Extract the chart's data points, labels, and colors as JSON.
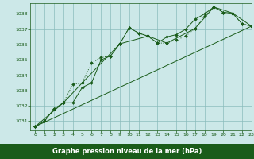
{
  "title": "Graphe pression niveau de la mer (hPa)",
  "background_color": "#cce8e8",
  "grid_color": "#8bbcbc",
  "line_color": "#1a5c1a",
  "bottom_color": "#1a5c1a",
  "xlim": [
    -0.5,
    23
  ],
  "ylim": [
    1030.4,
    1038.7
  ],
  "yticks": [
    1031,
    1032,
    1033,
    1034,
    1035,
    1036,
    1037,
    1038
  ],
  "xticks": [
    0,
    1,
    2,
    3,
    4,
    5,
    6,
    7,
    8,
    9,
    10,
    11,
    12,
    13,
    14,
    15,
    16,
    17,
    18,
    19,
    20,
    21,
    22,
    23
  ],
  "series_dotted": {
    "x": [
      0,
      1,
      2,
      3,
      4,
      5,
      6,
      7,
      8,
      9,
      10,
      11,
      12,
      13,
      14,
      15,
      16,
      17,
      18,
      19,
      20,
      21,
      22,
      23
    ],
    "y": [
      1030.65,
      1031.0,
      1031.8,
      1032.2,
      1033.4,
      1033.5,
      1034.8,
      1035.15,
      1035.25,
      1036.05,
      1037.1,
      1036.75,
      1036.55,
      1036.1,
      1036.1,
      1036.3,
      1036.55,
      1037.05,
      1037.85,
      1038.45,
      1038.1,
      1038.05,
      1037.35,
      1037.2
    ]
  },
  "series_solid1": {
    "x": [
      0,
      1,
      2,
      3,
      4,
      5,
      6,
      7,
      8,
      9,
      10,
      11,
      12,
      13,
      14,
      15,
      16,
      17,
      18,
      19,
      20,
      21,
      22,
      23
    ],
    "y": [
      1030.65,
      1031.0,
      1031.8,
      1032.2,
      1032.2,
      1033.2,
      1033.5,
      1035.0,
      1035.25,
      1036.05,
      1037.1,
      1036.75,
      1036.55,
      1036.1,
      1036.5,
      1036.65,
      1037.0,
      1037.65,
      1038.0,
      1038.45,
      1038.1,
      1038.05,
      1037.35,
      1037.2
    ]
  },
  "series_trend": {
    "x": [
      0,
      23
    ],
    "y": [
      1030.65,
      1037.2
    ]
  },
  "series_sparse": {
    "x": [
      0,
      3,
      5,
      9,
      12,
      14,
      17,
      19,
      21,
      23
    ],
    "y": [
      1030.65,
      1032.2,
      1033.5,
      1036.05,
      1036.55,
      1036.1,
      1037.05,
      1038.45,
      1038.05,
      1037.2
    ]
  }
}
